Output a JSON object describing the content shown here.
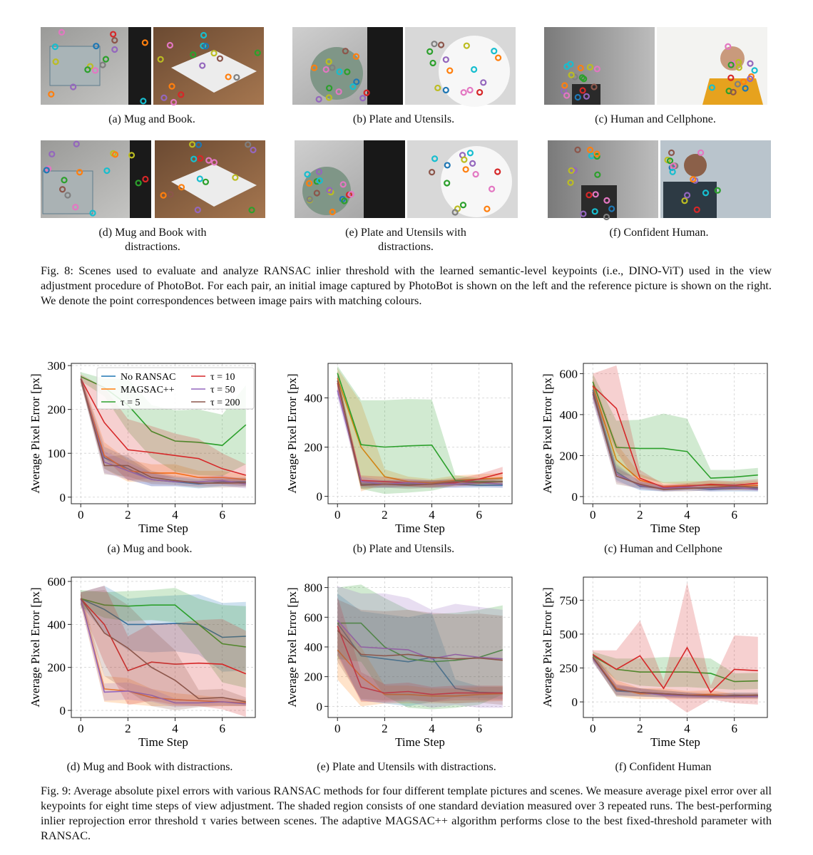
{
  "figure8": {
    "panel_captions": [
      "(a) Mug and Book.",
      "(b) Plate and Utensils.",
      "(c) Human and Cellphone.",
      "(d) Mug and Book with distractions.",
      "(e) Plate and Utensils with distractions.",
      "(f) Confident Human."
    ],
    "caption": "Fig. 8: Scenes used to evaluate and analyze RANSAC inlier threshold with the learned semantic-level keypoints (i.e., DINO-ViT) used in the view adjustment procedure of PhotoBot. For each pair, an initial image captured by PhotoBot is shown on the left and the reference picture is shown on the right. We denote the point correspondences between image pairs with matching colours."
  },
  "figure9": {
    "panel_captions": [
      "(a) Mug and book.",
      "(b) Plate and Utensils.",
      "(c) Human and Cellphone",
      "(d) Mug and Book with distractions.",
      "(e) Plate and Utensils with distractions.",
      "(f) Confident Human"
    ],
    "caption": "Fig. 9: Average absolute pixel errors with various RANSAC methods for four different template pictures and scenes. We measure average pixel error over all keypoints for eight time steps of view adjustment. The shaded region consists of one standard deviation measured over 3 repeated runs. The best-performing inlier reprojection error threshold τ varies between scenes. The adaptive MAGSAC++ algorithm performs close to the best fixed-threshold parameter with RANSAC."
  },
  "chart_data": [
    {
      "type": "line",
      "xlabel": "Time Step",
      "ylabel": "Average Pixel Error [px]",
      "x": [
        0,
        1,
        2,
        3,
        4,
        5,
        6,
        7
      ],
      "xlim": [
        -0.4,
        7.4
      ],
      "xticks": [
        0,
        2,
        4,
        6
      ],
      "ylim": [
        -15,
        305
      ],
      "yticks": [
        0,
        100,
        200,
        300
      ],
      "grid": true,
      "legend": "upper left",
      "series": [
        {
          "name": "No RANSAC",
          "color": "#1f77b4",
          "values": [
            270,
            90,
            65,
            40,
            35,
            30,
            35,
            35
          ],
          "std": [
            10,
            25,
            25,
            15,
            10,
            10,
            10,
            10
          ]
        },
        {
          "name": "MAGSAC++",
          "color": "#ff7f0e",
          "values": [
            270,
            95,
            60,
            55,
            55,
            45,
            45,
            40
          ],
          "std": [
            10,
            30,
            25,
            20,
            20,
            15,
            15,
            10
          ]
        },
        {
          "name": "τ = 5",
          "color": "#2ca02c",
          "values": [
            275,
            250,
            210,
            150,
            128,
            125,
            118,
            165
          ],
          "std": [
            10,
            20,
            60,
            60,
            70,
            75,
            70,
            90
          ]
        },
        {
          "name": "τ = 10",
          "color": "#d62728",
          "values": [
            270,
            170,
            108,
            102,
            95,
            88,
            65,
            50
          ],
          "std": [
            10,
            80,
            70,
            60,
            50,
            45,
            35,
            25
          ]
        },
        {
          "name": "τ = 50",
          "color": "#9467bd",
          "values": [
            270,
            80,
            60,
            40,
            35,
            35,
            38,
            30
          ],
          "std": [
            10,
            25,
            20,
            15,
            10,
            10,
            12,
            10
          ]
        },
        {
          "name": "τ = 200",
          "color": "#8c564b",
          "values": [
            270,
            72,
            72,
            45,
            38,
            32,
            32,
            33
          ],
          "std": [
            10,
            20,
            25,
            15,
            10,
            10,
            10,
            10
          ]
        }
      ]
    },
    {
      "type": "line",
      "xlabel": "Time Step",
      "ylabel": "Average Pixel Error [px]",
      "x": [
        0,
        1,
        2,
        3,
        4,
        5,
        6,
        7
      ],
      "xlim": [
        -0.4,
        7.4
      ],
      "xticks": [
        0,
        2,
        4,
        6
      ],
      "ylim": [
        -30,
        540
      ],
      "yticks": [
        0,
        200,
        400
      ],
      "grid": true,
      "series": [
        {
          "color": "#1f77b4",
          "values": [
            470,
            50,
            50,
            50,
            50,
            50,
            45,
            45
          ],
          "std": [
            30,
            15,
            15,
            15,
            15,
            15,
            10,
            10
          ]
        },
        {
          "color": "#ff7f0e",
          "values": [
            480,
            200,
            80,
            60,
            55,
            65,
            70,
            75
          ],
          "std": [
            40,
            180,
            30,
            20,
            15,
            20,
            20,
            20
          ]
        },
        {
          "color": "#2ca02c",
          "values": [
            500,
            210,
            200,
            205,
            208,
            65,
            60,
            60
          ],
          "std": [
            30,
            180,
            190,
            190,
            185,
            20,
            15,
            15
          ]
        },
        {
          "color": "#d62728",
          "values": [
            460,
            65,
            60,
            55,
            50,
            55,
            70,
            95
          ],
          "std": [
            30,
            20,
            20,
            15,
            15,
            15,
            20,
            25
          ]
        },
        {
          "color": "#9467bd",
          "values": [
            430,
            60,
            50,
            55,
            50,
            50,
            55,
            50
          ],
          "std": [
            30,
            20,
            15,
            15,
            15,
            15,
            15,
            15
          ]
        },
        {
          "color": "#8c564b",
          "values": [
            470,
            45,
            50,
            45,
            50,
            60,
            55,
            60
          ],
          "std": [
            30,
            15,
            15,
            15,
            15,
            15,
            15,
            15
          ]
        }
      ]
    },
    {
      "type": "line",
      "xlabel": "Time Step",
      "ylabel": "Average Pixel Error [px]",
      "x": [
        0,
        1,
        2,
        3,
        4,
        5,
        6,
        7
      ],
      "xlim": [
        -0.4,
        7.4
      ],
      "xticks": [
        0,
        2,
        4,
        6
      ],
      "ylim": [
        -35,
        650
      ],
      "yticks": [
        0,
        200,
        400,
        600
      ],
      "grid": true,
      "series": [
        {
          "color": "#1f77b4",
          "values": [
            520,
            120,
            50,
            40,
            45,
            35,
            40,
            40
          ],
          "std": [
            40,
            40,
            20,
            15,
            15,
            10,
            15,
            15
          ]
        },
        {
          "color": "#ff7f0e",
          "values": [
            540,
            180,
            80,
            50,
            55,
            55,
            50,
            55
          ],
          "std": [
            40,
            80,
            30,
            20,
            20,
            20,
            20,
            20
          ]
        },
        {
          "color": "#2ca02c",
          "values": [
            560,
            240,
            235,
            235,
            220,
            90,
            95,
            105
          ],
          "std": [
            40,
            130,
            140,
            170,
            160,
            40,
            35,
            35
          ]
        },
        {
          "color": "#d62728",
          "values": [
            540,
            430,
            90,
            45,
            50,
            60,
            55,
            65
          ],
          "std": [
            60,
            210,
            40,
            15,
            15,
            20,
            20,
            20
          ]
        },
        {
          "color": "#9467bd",
          "values": [
            500,
            110,
            55,
            40,
            45,
            40,
            45,
            35
          ],
          "std": [
            40,
            40,
            20,
            15,
            15,
            15,
            15,
            10
          ]
        },
        {
          "color": "#8c564b",
          "values": [
            510,
            100,
            60,
            35,
            40,
            45,
            50,
            45
          ],
          "std": [
            40,
            40,
            20,
            10,
            15,
            15,
            15,
            15
          ]
        }
      ]
    },
    {
      "type": "line",
      "xlabel": "Time Step",
      "ylabel": "Average Pixel Error [px]",
      "x": [
        0,
        1,
        2,
        3,
        4,
        5,
        6,
        7
      ],
      "xlim": [
        -0.4,
        7.4
      ],
      "xticks": [
        0,
        2,
        4,
        6
      ],
      "ylim": [
        -33,
        620
      ],
      "yticks": [
        0,
        200,
        400,
        600
      ],
      "grid": true,
      "series": [
        {
          "color": "#1f77b4",
          "values": [
            520,
            470,
            400,
            400,
            405,
            400,
            340,
            345
          ],
          "std": [
            30,
            110,
            120,
            130,
            130,
            140,
            160,
            160
          ]
        },
        {
          "color": "#ff7f0e",
          "values": [
            520,
            100,
            90,
            60,
            50,
            45,
            40,
            35
          ],
          "std": [
            30,
            60,
            60,
            40,
            30,
            25,
            20,
            15
          ]
        },
        {
          "color": "#2ca02c",
          "values": [
            520,
            490,
            485,
            490,
            490,
            400,
            310,
            295
          ],
          "std": [
            40,
            60,
            70,
            70,
            80,
            120,
            180,
            190
          ]
        },
        {
          "color": "#d62728",
          "values": [
            520,
            400,
            185,
            225,
            215,
            220,
            215,
            170
          ],
          "std": [
            30,
            180,
            160,
            180,
            190,
            200,
            210,
            200
          ]
        },
        {
          "color": "#9467bd",
          "values": [
            520,
            85,
            90,
            70,
            35,
            35,
            40,
            30
          ],
          "std": [
            30,
            40,
            40,
            30,
            20,
            15,
            15,
            10
          ]
        },
        {
          "color": "#8c564b",
          "values": [
            520,
            360,
            290,
            200,
            140,
            55,
            60,
            40
          ],
          "std": [
            30,
            200,
            200,
            180,
            140,
            40,
            40,
            20
          ]
        }
      ]
    },
    {
      "type": "line",
      "xlabel": "Time Step",
      "ylabel": "Average Pixel Error [px]",
      "x": [
        0,
        1,
        2,
        3,
        4,
        5,
        6,
        7
      ],
      "xlim": [
        -0.4,
        7.4
      ],
      "xticks": [
        0,
        2,
        4,
        6
      ],
      "ylim": [
        -75,
        870
      ],
      "yticks": [
        0,
        200,
        400,
        600,
        800
      ],
      "grid": true,
      "series": [
        {
          "color": "#1f77b4",
          "values": [
            560,
            340,
            320,
            300,
            330,
            120,
            95,
            90
          ],
          "std": [
            200,
            300,
            300,
            300,
            300,
            60,
            40,
            40
          ]
        },
        {
          "color": "#ff7f0e",
          "values": [
            380,
            200,
            80,
            80,
            70,
            70,
            80,
            85
          ],
          "std": [
            200,
            200,
            60,
            60,
            50,
            50,
            50,
            50
          ]
        },
        {
          "color": "#2ca02c",
          "values": [
            560,
            560,
            400,
            320,
            300,
            310,
            330,
            380
          ],
          "std": [
            240,
            260,
            330,
            330,
            320,
            320,
            320,
            300
          ]
        },
        {
          "color": "#d62728",
          "values": [
            540,
            130,
            90,
            100,
            80,
            90,
            90,
            90
          ],
          "std": [
            200,
            100,
            60,
            60,
            50,
            50,
            50,
            50
          ]
        },
        {
          "color": "#9467bd",
          "values": [
            580,
            400,
            390,
            380,
            320,
            350,
            330,
            320
          ],
          "std": [
            230,
            360,
            370,
            350,
            330,
            340,
            340,
            330
          ]
        },
        {
          "color": "#8c564b",
          "values": [
            510,
            350,
            340,
            350,
            330,
            320,
            325,
            310
          ],
          "std": [
            210,
            300,
            300,
            300,
            300,
            300,
            300,
            300
          ]
        }
      ]
    },
    {
      "type": "line",
      "xlabel": "Time Step",
      "ylabel": "Average Pixel Error [px]",
      "x": [
        0,
        1,
        2,
        3,
        4,
        5,
        6,
        7
      ],
      "xlim": [
        -0.4,
        7.4
      ],
      "xticks": [
        0,
        2,
        4,
        6
      ],
      "ylim": [
        -115,
        920
      ],
      "yticks": [
        0,
        250,
        500,
        750
      ],
      "grid": true,
      "series": [
        {
          "color": "#1f77b4",
          "values": [
            330,
            80,
            70,
            60,
            50,
            40,
            50,
            45
          ],
          "std": [
            30,
            40,
            30,
            25,
            20,
            15,
            20,
            20
          ]
        },
        {
          "color": "#ff7f0e",
          "values": [
            330,
            100,
            60,
            60,
            50,
            55,
            40,
            40
          ],
          "std": [
            30,
            60,
            40,
            40,
            30,
            30,
            20,
            20
          ]
        },
        {
          "color": "#2ca02c",
          "values": [
            340,
            240,
            220,
            220,
            220,
            210,
            150,
            155
          ],
          "std": [
            30,
            80,
            100,
            110,
            110,
            110,
            60,
            60
          ]
        },
        {
          "color": "#d62728",
          "values": [
            350,
            240,
            340,
            100,
            400,
            70,
            240,
            230
          ],
          "std": [
            30,
            140,
            260,
            60,
            480,
            50,
            250,
            250
          ]
        },
        {
          "color": "#9467bd",
          "values": [
            320,
            90,
            70,
            50,
            45,
            40,
            40,
            40
          ],
          "std": [
            30,
            40,
            30,
            20,
            20,
            15,
            15,
            15
          ]
        },
        {
          "color": "#8c564b",
          "values": [
            330,
            90,
            70,
            60,
            50,
            45,
            45,
            50
          ],
          "std": [
            30,
            40,
            30,
            25,
            20,
            20,
            20,
            20
          ]
        }
      ]
    }
  ]
}
